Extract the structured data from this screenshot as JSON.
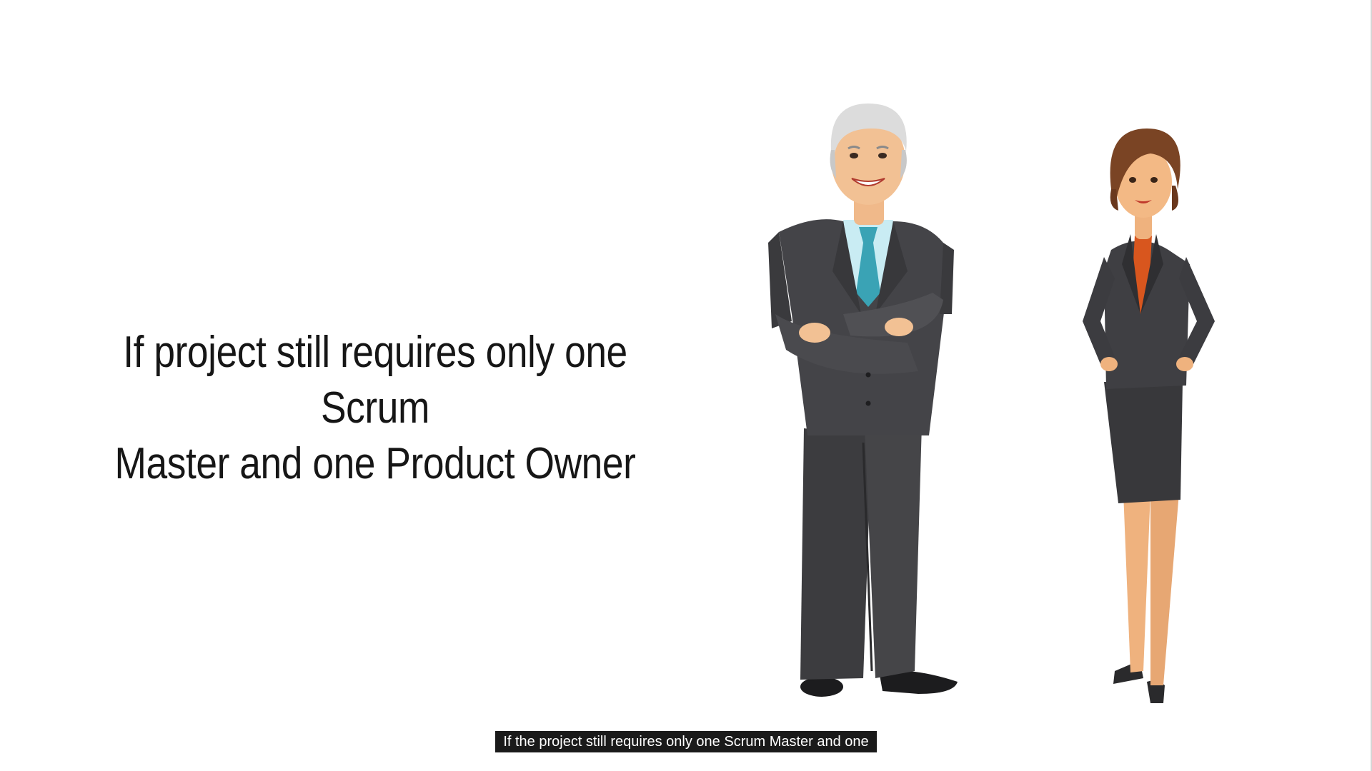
{
  "slide": {
    "lines": [
      "If project still requires only one Scrum",
      "Master and one Product Owner"
    ]
  },
  "characters": [
    {
      "name": "businessman-illustration",
      "suit": "#3f3f42",
      "shirt": "#c9ecf3",
      "tie": "#3aa3b5"
    },
    {
      "name": "businesswoman-illustration",
      "suit": "#3a3a3d",
      "blouse": "#d8561e",
      "hair": "#7a4424"
    }
  ],
  "caption": {
    "text": "If the project still requires only one Scrum Master and one"
  },
  "colors": {
    "background": "#ffffff",
    "text": "#161616",
    "caption_bg": "#1a1a1a",
    "caption_text": "#ffffff"
  }
}
